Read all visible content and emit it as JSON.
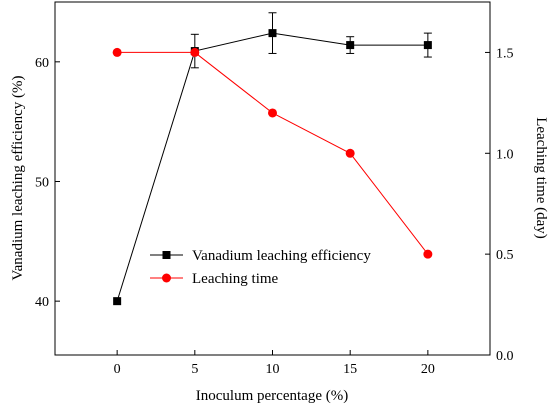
{
  "chart_data": {
    "type": "line",
    "title": "",
    "xlabel": "Inoculum percentage (%)",
    "ylabel_left": "Vanadium leaching efficiency (%)",
    "ylabel_right": "Leaching time (day)",
    "x": [
      0,
      5,
      10,
      15,
      20
    ],
    "x_ticks": [
      "0",
      "5",
      "10",
      "15",
      "20"
    ],
    "xlim": [
      -4,
      24
    ],
    "ylim_left": [
      35.5,
      65
    ],
    "y_ticks_left": [
      "40",
      "50",
      "60"
    ],
    "ylim_right": [
      0,
      1.75
    ],
    "y_ticks_right": [
      "0.0",
      "0.5",
      "1.0",
      "1.5"
    ],
    "legend_position": "lower-center",
    "series": [
      {
        "name": "Vanadium leaching efficiency",
        "axis": "left",
        "marker": "square",
        "color": "#000000",
        "values": [
          40.0,
          60.9,
          62.4,
          61.4,
          61.4
        ],
        "errors": [
          0,
          1.4,
          1.7,
          0.7,
          1.0
        ]
      },
      {
        "name": "Leaching time",
        "axis": "right",
        "marker": "circle",
        "color": "#ff0000",
        "values": [
          1.5,
          1.5,
          1.2,
          1.0,
          0.5
        ],
        "errors": [
          0,
          0,
          0,
          0,
          0
        ]
      }
    ]
  }
}
